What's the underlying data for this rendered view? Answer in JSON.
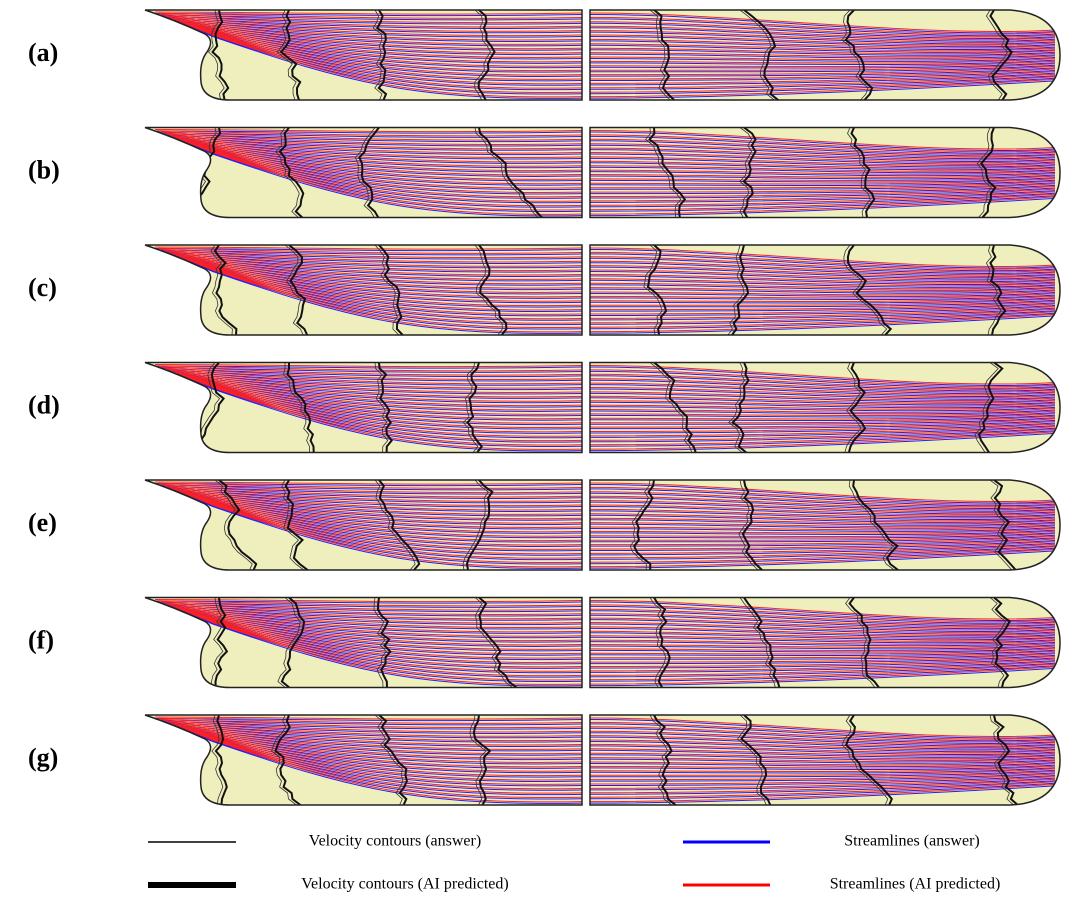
{
  "rows": [
    {
      "label": "(a)"
    },
    {
      "label": "(b)"
    },
    {
      "label": "(c)"
    },
    {
      "label": "(d)"
    },
    {
      "label": "(e)"
    },
    {
      "label": "(f)"
    },
    {
      "label": "(g)"
    }
  ],
  "legend": [
    {
      "label": "Velocity contours (answer)"
    },
    {
      "label": "Streamlines (answer)"
    },
    {
      "label": "Velocity contours (AI predicted)"
    },
    {
      "label": "Streamlines (AI predicted)"
    }
  ]
}
